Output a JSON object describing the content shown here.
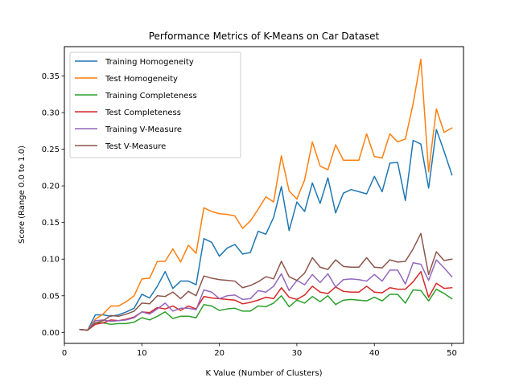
{
  "chart_data": {
    "type": "line",
    "title": "Performance Metrics of K-Means on Car Dataset",
    "xlabel": "K Value (Number of Clusters)",
    "ylabel": "Score (Range 0.0 to 1.0)",
    "xlim": [
      0,
      51.5
    ],
    "ylim": [
      -0.015,
      0.39
    ],
    "x_ticks": [
      0,
      10,
      20,
      30,
      40,
      50
    ],
    "y_ticks": [
      0.0,
      0.05,
      0.1,
      0.15,
      0.2,
      0.25,
      0.3,
      0.35
    ],
    "y_tick_labels": [
      "0.00",
      "0.05",
      "0.10",
      "0.15",
      "0.20",
      "0.25",
      "0.30",
      "0.35"
    ],
    "grid": false,
    "legend_position": "top-left",
    "x": [
      2,
      3,
      4,
      5,
      6,
      7,
      8,
      9,
      10,
      11,
      12,
      13,
      14,
      15,
      16,
      17,
      18,
      19,
      20,
      21,
      22,
      23,
      24,
      25,
      26,
      27,
      28,
      29,
      30,
      31,
      32,
      33,
      34,
      35,
      36,
      37,
      38,
      39,
      40,
      41,
      42,
      43,
      44,
      45,
      46,
      47,
      48,
      49,
      50
    ],
    "series": [
      {
        "name": "Training Homogeneity",
        "color": "#1f77b4",
        "values": [
          0.004,
          0.003,
          0.024,
          0.024,
          0.022,
          0.024,
          0.028,
          0.033,
          0.052,
          0.047,
          0.063,
          0.083,
          0.06,
          0.07,
          0.07,
          0.065,
          0.128,
          0.123,
          0.104,
          0.115,
          0.12,
          0.107,
          0.109,
          0.138,
          0.134,
          0.157,
          0.199,
          0.139,
          0.178,
          0.165,
          0.204,
          0.176,
          0.211,
          0.163,
          0.19,
          0.195,
          0.192,
          0.189,
          0.213,
          0.192,
          0.231,
          0.232,
          0.18,
          0.262,
          0.257,
          0.197,
          0.277,
          0.247,
          0.215
        ]
      },
      {
        "name": "Test Homogeneity",
        "color": "#ff7f0e",
        "values": [
          0.004,
          0.003,
          0.018,
          0.025,
          0.036,
          0.036,
          0.042,
          0.05,
          0.073,
          0.074,
          0.097,
          0.097,
          0.114,
          0.096,
          0.119,
          0.108,
          0.17,
          0.165,
          0.162,
          0.161,
          0.159,
          0.142,
          0.152,
          0.168,
          0.185,
          0.178,
          0.241,
          0.193,
          0.182,
          0.208,
          0.26,
          0.227,
          0.222,
          0.256,
          0.235,
          0.235,
          0.235,
          0.271,
          0.24,
          0.238,
          0.271,
          0.26,
          0.264,
          0.312,
          0.373,
          0.219,
          0.305,
          0.273,
          0.279
        ]
      },
      {
        "name": "Training Completeness",
        "color": "#2ca02c",
        "values": [
          0.004,
          0.003,
          0.013,
          0.013,
          0.011,
          0.012,
          0.012,
          0.014,
          0.02,
          0.017,
          0.022,
          0.028,
          0.019,
          0.022,
          0.022,
          0.02,
          0.038,
          0.036,
          0.03,
          0.032,
          0.033,
          0.029,
          0.029,
          0.036,
          0.035,
          0.04,
          0.05,
          0.035,
          0.044,
          0.04,
          0.049,
          0.042,
          0.05,
          0.038,
          0.044,
          0.045,
          0.044,
          0.043,
          0.048,
          0.043,
          0.052,
          0.052,
          0.04,
          0.058,
          0.057,
          0.043,
          0.059,
          0.053,
          0.046
        ]
      },
      {
        "name": "Test Completeness",
        "color": "#d62728",
        "values": [
          0.004,
          0.003,
          0.011,
          0.013,
          0.017,
          0.016,
          0.018,
          0.021,
          0.028,
          0.027,
          0.034,
          0.032,
          0.036,
          0.03,
          0.036,
          0.032,
          0.049,
          0.047,
          0.046,
          0.045,
          0.044,
          0.039,
          0.041,
          0.044,
          0.048,
          0.046,
          0.061,
          0.048,
          0.045,
          0.051,
          0.063,
          0.055,
          0.053,
          0.062,
          0.056,
          0.055,
          0.055,
          0.063,
          0.055,
          0.054,
          0.061,
          0.059,
          0.059,
          0.069,
          0.083,
          0.048,
          0.067,
          0.06,
          0.061
        ]
      },
      {
        "name": "Training V-Measure",
        "color": "#9467bd",
        "values": [
          0.004,
          0.003,
          0.016,
          0.017,
          0.015,
          0.016,
          0.017,
          0.02,
          0.028,
          0.025,
          0.032,
          0.04,
          0.029,
          0.033,
          0.033,
          0.031,
          0.058,
          0.055,
          0.046,
          0.05,
          0.051,
          0.045,
          0.046,
          0.057,
          0.055,
          0.063,
          0.08,
          0.057,
          0.071,
          0.065,
          0.079,
          0.068,
          0.08,
          0.062,
          0.072,
          0.073,
          0.072,
          0.07,
          0.079,
          0.07,
          0.085,
          0.085,
          0.066,
          0.095,
          0.093,
          0.071,
          0.099,
          0.088,
          0.076
        ]
      },
      {
        "name": "Test V-Measure",
        "color": "#8c564b",
        "values": [
          0.004,
          0.003,
          0.013,
          0.016,
          0.023,
          0.022,
          0.025,
          0.029,
          0.04,
          0.039,
          0.05,
          0.049,
          0.055,
          0.046,
          0.056,
          0.05,
          0.077,
          0.074,
          0.072,
          0.071,
          0.07,
          0.061,
          0.064,
          0.069,
          0.076,
          0.073,
          0.097,
          0.076,
          0.071,
          0.081,
          0.102,
          0.089,
          0.086,
          0.099,
          0.09,
          0.089,
          0.089,
          0.102,
          0.089,
          0.088,
          0.099,
          0.096,
          0.097,
          0.114,
          0.135,
          0.079,
          0.11,
          0.098,
          0.1
        ]
      }
    ]
  }
}
